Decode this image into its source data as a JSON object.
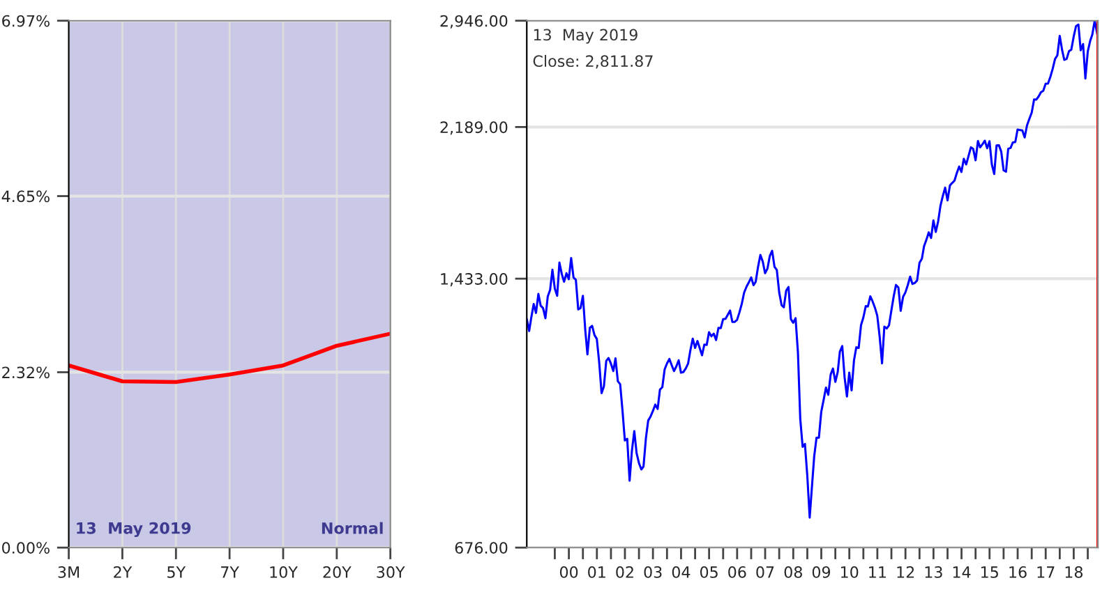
{
  "chart_data": [
    {
      "type": "line",
      "categories": [
        "3M",
        "2Y",
        "5Y",
        "7Y",
        "10Y",
        "20Y",
        "30Y"
      ],
      "series": [
        {
          "color": "#ff0000",
          "values": [
            2.41,
            2.2,
            2.19,
            2.29,
            2.41,
            2.67,
            2.83
          ]
        }
      ],
      "ylim": [
        0,
        6.97
      ],
      "yticks": [
        {
          "value": 0,
          "label": "0.00%"
        },
        {
          "value": 2.32,
          "label": "2.32%"
        },
        {
          "value": 4.65,
          "label": "4.65%"
        },
        {
          "value": 6.97,
          "label": "6.97%"
        }
      ],
      "grid": true,
      "marker": "none",
      "line_style": "solid",
      "annotations": [
        "13  May 2019",
        "Normal"
      ]
    },
    {
      "type": "line",
      "log": "y",
      "x": [
        "1999-01",
        "1999-02",
        "1999-03",
        "1999-04",
        "1999-05",
        "1999-06",
        "1999-07",
        "1999-08",
        "1999-09",
        "1999-10",
        "1999-11",
        "1999-12",
        "2000-01",
        "2000-02",
        "2000-03",
        "2000-04",
        "2000-05",
        "2000-06",
        "2000-07",
        "2000-08",
        "2000-09",
        "2000-10",
        "2000-11",
        "2000-12",
        "2001-01",
        "2001-02",
        "2001-03",
        "2001-04",
        "2001-05",
        "2001-06",
        "2001-07",
        "2001-08",
        "2001-09",
        "2001-10",
        "2001-11",
        "2001-12",
        "2002-01",
        "2002-02",
        "2002-03",
        "2002-04",
        "2002-05",
        "2002-06",
        "2002-07",
        "2002-08",
        "2002-09",
        "2002-10",
        "2002-11",
        "2002-12",
        "2003-01",
        "2003-02",
        "2003-03",
        "2003-04",
        "2003-05",
        "2003-06",
        "2003-07",
        "2003-08",
        "2003-09",
        "2003-10",
        "2003-11",
        "2003-12",
        "2004-01",
        "2004-02",
        "2004-03",
        "2004-04",
        "2004-05",
        "2004-06",
        "2004-07",
        "2004-08",
        "2004-09",
        "2004-10",
        "2004-11",
        "2004-12",
        "2005-01",
        "2005-02",
        "2005-03",
        "2005-04",
        "2005-05",
        "2005-06",
        "2005-07",
        "2005-08",
        "2005-09",
        "2005-10",
        "2005-11",
        "2005-12",
        "2006-01",
        "2006-02",
        "2006-03",
        "2006-04",
        "2006-05",
        "2006-06",
        "2006-07",
        "2006-08",
        "2006-09",
        "2006-10",
        "2006-11",
        "2006-12",
        "2007-01",
        "2007-02",
        "2007-03",
        "2007-04",
        "2007-05",
        "2007-06",
        "2007-07",
        "2007-08",
        "2007-09",
        "2007-10",
        "2007-11",
        "2007-12",
        "2008-01",
        "2008-02",
        "2008-03",
        "2008-04",
        "2008-05",
        "2008-06",
        "2008-07",
        "2008-08",
        "2008-09",
        "2008-10",
        "2008-11",
        "2008-12",
        "2009-01",
        "2009-02",
        "2009-03",
        "2009-04",
        "2009-05",
        "2009-06",
        "2009-07",
        "2009-08",
        "2009-09",
        "2009-10",
        "2009-11",
        "2009-12",
        "2010-01",
        "2010-02",
        "2010-03",
        "2010-04",
        "2010-05",
        "2010-06",
        "2010-07",
        "2010-08",
        "2010-09",
        "2010-10",
        "2010-11",
        "2010-12",
        "2011-01",
        "2011-02",
        "2011-03",
        "2011-04",
        "2011-05",
        "2011-06",
        "2011-07",
        "2011-08",
        "2011-09",
        "2011-10",
        "2011-11",
        "2011-12",
        "2012-01",
        "2012-02",
        "2012-03",
        "2012-04",
        "2012-05",
        "2012-06",
        "2012-07",
        "2012-08",
        "2012-09",
        "2012-10",
        "2012-11",
        "2012-12",
        "2013-01",
        "2013-02",
        "2013-03",
        "2013-04",
        "2013-05",
        "2013-06",
        "2013-07",
        "2013-08",
        "2013-09",
        "2013-10",
        "2013-11",
        "2013-12",
        "2014-01",
        "2014-02",
        "2014-03",
        "2014-04",
        "2014-05",
        "2014-06",
        "2014-07",
        "2014-08",
        "2014-09",
        "2014-10",
        "2014-11",
        "2014-12",
        "2015-01",
        "2015-02",
        "2015-03",
        "2015-04",
        "2015-05",
        "2015-06",
        "2015-07",
        "2015-08",
        "2015-09",
        "2015-10",
        "2015-11",
        "2015-12",
        "2016-01",
        "2016-02",
        "2016-03",
        "2016-04",
        "2016-05",
        "2016-06",
        "2016-07",
        "2016-08",
        "2016-09",
        "2016-10",
        "2016-11",
        "2016-12",
        "2017-01",
        "2017-02",
        "2017-03",
        "2017-04",
        "2017-05",
        "2017-06",
        "2017-07",
        "2017-08",
        "2017-09",
        "2017-10",
        "2017-11",
        "2017-12",
        "2018-01",
        "2018-02",
        "2018-03",
        "2018-04",
        "2018-05",
        "2018-06",
        "2018-07",
        "2018-08",
        "2018-09",
        "2018-10",
        "2018-11",
        "2018-12",
        "2019-01",
        "2019-02",
        "2019-03",
        "2019-04",
        "2019-05-13"
      ],
      "series": [
        {
          "color": "#0000ff",
          "values": [
            1280,
            1238,
            1286,
            1335,
            1302,
            1373,
            1329,
            1320,
            1283,
            1363,
            1389,
            1469,
            1394,
            1366,
            1499,
            1452,
            1421,
            1455,
            1431,
            1518,
            1437,
            1429,
            1315,
            1320,
            1366,
            1240,
            1160,
            1249,
            1256,
            1224,
            1211,
            1134,
            1041,
            1060,
            1139,
            1148,
            1130,
            1107,
            1147,
            1076,
            1067,
            990,
            912,
            916,
            815,
            886,
            936,
            880,
            856,
            841,
            848,
            917,
            964,
            975,
            990,
            1008,
            996,
            1051,
            1058,
            1112,
            1131,
            1145,
            1126,
            1107,
            1121,
            1141,
            1102,
            1104,
            1115,
            1130,
            1174,
            1212,
            1181,
            1204,
            1181,
            1157,
            1192,
            1191,
            1234,
            1220,
            1229,
            1207,
            1249,
            1248,
            1280,
            1281,
            1295,
            1311,
            1270,
            1270,
            1277,
            1304,
            1336,
            1378,
            1401,
            1418,
            1438,
            1407,
            1421,
            1482,
            1531,
            1503,
            1455,
            1474,
            1527,
            1549,
            1481,
            1468,
            1379,
            1331,
            1323,
            1386,
            1400,
            1280,
            1267,
            1283,
            1166,
            969,
            896,
            903,
            826,
            735,
            798,
            873,
            919,
            919,
            987,
            1021,
            1057,
            1036,
            1096,
            1115,
            1074,
            1104,
            1169,
            1187,
            1089,
            1031,
            1102,
            1049,
            1141,
            1183,
            1181,
            1258,
            1286,
            1327,
            1326,
            1364,
            1345,
            1321,
            1292,
            1219,
            1131,
            1253,
            1247,
            1258,
            1312,
            1366,
            1408,
            1398,
            1310,
            1362,
            1379,
            1407,
            1441,
            1412,
            1416,
            1426,
            1498,
            1515,
            1569,
            1598,
            1631,
            1606,
            1686,
            1633,
            1682,
            1757,
            1806,
            1848,
            1783,
            1859,
            1872,
            1884,
            1924,
            1960,
            1931,
            2003,
            1972,
            2018,
            2068,
            2059,
            1995,
            2105,
            2068,
            2086,
            2107,
            2063,
            2104,
            1972,
            1920,
            2079,
            2080,
            2044,
            1940,
            1932,
            2060,
            2065,
            2097,
            2099,
            2174,
            2171,
            2168,
            2126,
            2199,
            2239,
            2279,
            2364,
            2363,
            2384,
            2412,
            2423,
            2470,
            2472,
            2519,
            2575,
            2648,
            2674,
            2824,
            2714,
            2641,
            2648,
            2705,
            2718,
            2816,
            2902,
            2914,
            2712,
            2760,
            2507,
            2704,
            2784,
            2834,
            2946,
            2812
          ]
        }
      ],
      "xlim": [
        "1999-01",
        "2019-05-13"
      ],
      "xticks": [
        {
          "value": "2000",
          "label": null
        },
        {
          "value": "2001",
          "label": null
        },
        {
          "value": "2002",
          "label": null
        },
        {
          "value": "2003",
          "label": null
        },
        {
          "value": "2004",
          "label": null
        },
        {
          "value": "2005",
          "label": null
        },
        {
          "value": "2006",
          "label": null
        },
        {
          "value": "2007",
          "label": null
        },
        {
          "value": "2008",
          "label": null
        },
        {
          "value": "2009",
          "label": null
        },
        {
          "value": "2010",
          "label": null
        },
        {
          "value": "2011",
          "label": null
        },
        {
          "value": "2012",
          "label": null
        },
        {
          "value": "2013",
          "label": null
        },
        {
          "value": "2014",
          "label": null
        },
        {
          "value": "2015",
          "label": null
        },
        {
          "value": "2016",
          "label": null
        },
        {
          "value": "2017",
          "label": null
        },
        {
          "value": "2018",
          "label": null
        },
        {
          "value": "2019",
          "label": null
        },
        {
          "value": "2000-07-02",
          "label": "00"
        },
        {
          "value": "2001-07-02",
          "label": "01"
        },
        {
          "value": "2002-07-02",
          "label": "02"
        },
        {
          "value": "2003-07-02",
          "label": "03"
        },
        {
          "value": "2004-07-02",
          "label": "04"
        },
        {
          "value": "2005-07-02",
          "label": "05"
        },
        {
          "value": "2006-07-02",
          "label": "06"
        },
        {
          "value": "2007-07-02",
          "label": "07"
        },
        {
          "value": "2008-07-02",
          "label": "08"
        },
        {
          "value": "2009-07-02",
          "label": "09"
        },
        {
          "value": "2010-07-02",
          "label": "10"
        },
        {
          "value": "2011-07-02",
          "label": "11"
        },
        {
          "value": "2012-07-02",
          "label": "12"
        },
        {
          "value": "2013-07-02",
          "label": "13"
        },
        {
          "value": "2014-07-02",
          "label": "14"
        },
        {
          "value": "2015-07-02",
          "label": "15"
        },
        {
          "value": "2016-07-02",
          "label": "16"
        },
        {
          "value": "2017-07-02",
          "label": "17"
        },
        {
          "value": "2018-07-02",
          "label": "18"
        }
      ],
      "ylim": [
        676,
        2946
      ],
      "yticks": [
        {
          "value": 676,
          "label": "676.00"
        },
        {
          "value": 1433,
          "label": "1,433.00"
        },
        {
          "value": 2189,
          "label": "2,189.00"
        },
        {
          "value": 2946,
          "label": "2,946.00"
        }
      ],
      "grid": "y",
      "marker": "none",
      "line_style": "solid",
      "ref_lines": [
        {
          "axis": "x",
          "value": "2019-05-13",
          "label": null,
          "color": "#ff0000"
        }
      ],
      "annotations": [
        "13  May 2019",
        "Close: 2,811.87"
      ]
    }
  ]
}
